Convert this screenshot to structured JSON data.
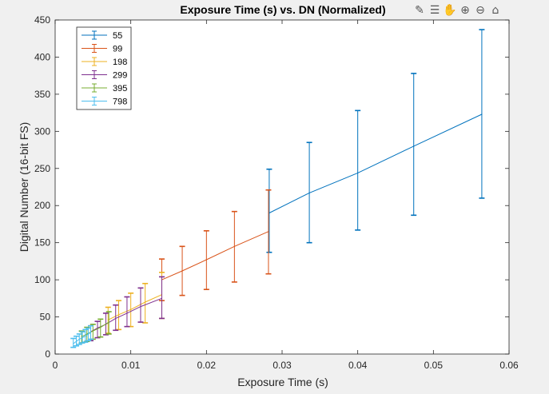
{
  "toolbar": {
    "icons": [
      "brush-icon",
      "data-tips-icon",
      "pan-icon",
      "zoom-in-icon",
      "zoom-out-icon",
      "home-icon"
    ]
  },
  "chart_data": {
    "type": "line",
    "title": "Exposure Time (s) vs. DN (Normalized)",
    "xlabel": "Exposure Time (s)",
    "ylabel": "Digital Number (16-bit FS)",
    "xlim": [
      0,
      0.06
    ],
    "ylim": [
      0,
      450
    ],
    "xticks": [
      0,
      0.01,
      0.02,
      0.03,
      0.04,
      0.05,
      0.06
    ],
    "xtick_labels": [
      "0",
      "0.01",
      "0.02",
      "0.03",
      "0.04",
      "0.05",
      "0.06"
    ],
    "yticks": [
      0,
      50,
      100,
      150,
      200,
      250,
      300,
      350,
      400,
      450
    ],
    "ytick_labels": [
      "0",
      "50",
      "100",
      "150",
      "200",
      "250",
      "300",
      "350",
      "400",
      "450"
    ],
    "grid": false,
    "legend_position": "top-left",
    "series": [
      {
        "name": "55",
        "color": "#0072BD",
        "x": [
          0.0283,
          0.0336,
          0.04,
          0.0474,
          0.0564
        ],
        "y": [
          190,
          217,
          244,
          280,
          323
        ],
        "err_low": [
          137,
          150,
          167,
          187,
          210
        ],
        "err_high": [
          249,
          285,
          328,
          378,
          437
        ]
      },
      {
        "name": "99",
        "color": "#D95319",
        "x": [
          0.0141,
          0.0168,
          0.02,
          0.0237,
          0.0282
        ],
        "y": [
          100,
          112,
          127,
          145,
          165
        ],
        "err_low": [
          72,
          79,
          87,
          97,
          108
        ],
        "err_high": [
          128,
          145,
          166,
          192,
          221
        ]
      },
      {
        "name": "198",
        "color": "#EDB120",
        "x": [
          0.007,
          0.0084,
          0.01,
          0.0119,
          0.0141
        ],
        "y": [
          46,
          53,
          60,
          70,
          80
        ],
        "err_low": [
          28,
          33,
          37,
          42,
          48
        ],
        "err_high": [
          63,
          72,
          82,
          95,
          110
        ]
      },
      {
        "name": "299",
        "color": "#7E2F8E",
        "x": [
          0.0047,
          0.0056,
          0.0067,
          0.008,
          0.0095,
          0.0113,
          0.0141
        ],
        "y": [
          30,
          35,
          40,
          48,
          55,
          64,
          75
        ],
        "err_low": [
          18,
          22,
          26,
          32,
          37,
          43,
          48
        ],
        "err_high": [
          38,
          44,
          55,
          66,
          77,
          89,
          104
        ]
      },
      {
        "name": "395",
        "color": "#77AC30",
        "x": [
          0.0035,
          0.0042,
          0.005,
          0.006,
          0.0071
        ],
        "y": [
          23,
          27,
          31,
          36,
          43
        ],
        "err_low": [
          15,
          17,
          20,
          23,
          27
        ],
        "err_high": [
          31,
          36,
          40,
          47,
          57
        ]
      },
      {
        "name": "798",
        "color": "#4DBEEE",
        "x": [
          0.0024,
          0.0028,
          0.0032,
          0.0036,
          0.004,
          0.0044,
          0.0047
        ],
        "y": [
          14,
          17,
          20,
          22,
          24,
          27,
          29
        ],
        "err_low": [
          9,
          11,
          13,
          15,
          16,
          18,
          20
        ],
        "err_high": [
          21,
          24,
          27,
          30,
          33,
          35,
          38
        ]
      }
    ]
  }
}
